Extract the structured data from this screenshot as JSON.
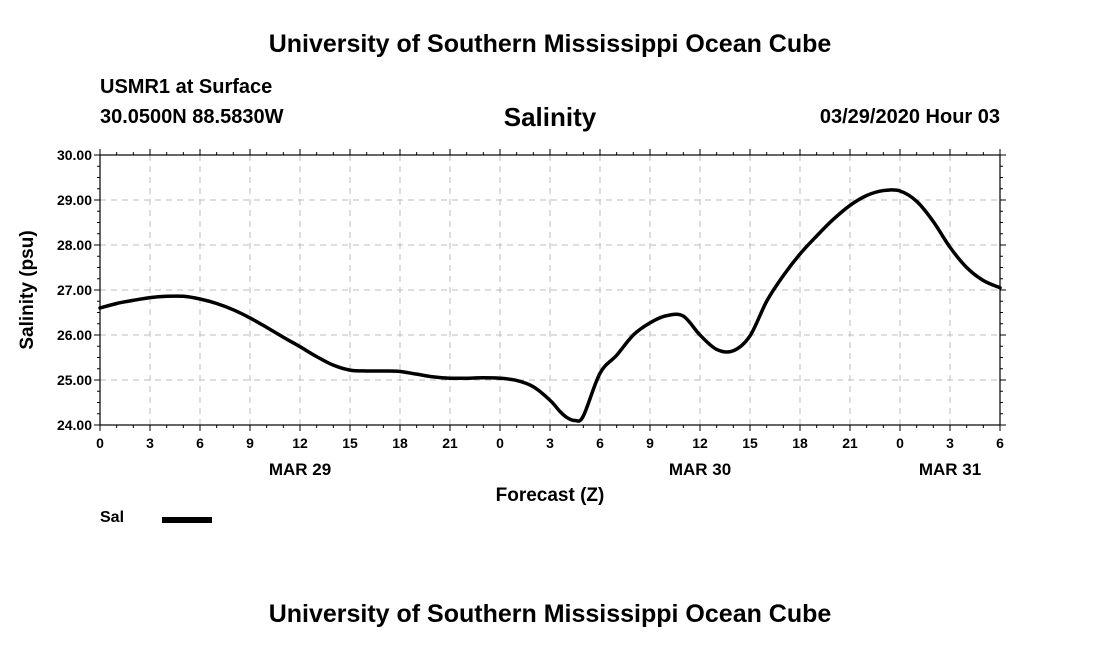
{
  "header": {
    "title": "University of Southern Mississippi Ocean Cube",
    "station": "USMR1 at Surface",
    "coordinates": "30.0500N 88.5830W",
    "datetime": "03/29/2020 Hour 03"
  },
  "footer": {
    "title": "University of Southern Mississippi Ocean Cube"
  },
  "chart_data": {
    "type": "line",
    "title": "Salinity",
    "xlabel": "Forecast (Z)",
    "ylabel": "Salinity (psu)",
    "ylim": [
      24.0,
      30.0
    ],
    "yticks": [
      "24.00",
      "25.00",
      "26.00",
      "27.00",
      "28.00",
      "29.00",
      "30.00"
    ],
    "xlim": [
      0,
      54
    ],
    "xtick_hours": [
      0,
      3,
      6,
      9,
      12,
      15,
      18,
      21,
      24,
      27,
      30,
      33,
      36,
      39,
      42,
      45,
      48,
      51,
      54
    ],
    "xtick_labels": [
      "0",
      "3",
      "6",
      "9",
      "12",
      "15",
      "18",
      "21",
      "0",
      "3",
      "6",
      "9",
      "12",
      "15",
      "18",
      "21",
      "0",
      "3",
      "6"
    ],
    "date_labels": [
      {
        "label": "MAR 29",
        "hour": 12
      },
      {
        "label": "MAR 30",
        "hour": 36
      },
      {
        "label": "MAR 31",
        "hour": 51
      }
    ],
    "grid": true,
    "legend": "bottom-left",
    "line_color": "#000000",
    "series": [
      {
        "name": "Sal",
        "x": [
          0,
          1,
          2,
          3,
          4,
          5,
          6,
          7,
          8,
          9,
          10,
          11,
          12,
          13,
          14,
          15,
          16,
          17,
          18,
          19,
          20,
          21,
          22,
          23,
          24,
          25,
          26,
          27,
          27.6,
          28,
          28.5,
          29,
          30,
          31,
          32,
          33,
          34,
          35,
          36,
          37,
          38,
          39,
          40,
          41,
          42,
          43,
          44,
          45,
          46,
          47,
          48,
          49,
          50,
          51,
          52,
          53,
          54
        ],
        "y": [
          26.6,
          26.7,
          26.77,
          26.83,
          26.86,
          26.86,
          26.8,
          26.7,
          26.56,
          26.38,
          26.17,
          25.95,
          25.74,
          25.52,
          25.33,
          25.22,
          25.2,
          25.2,
          25.19,
          25.13,
          25.07,
          25.04,
          25.04,
          25.05,
          25.04,
          24.99,
          24.85,
          24.55,
          24.3,
          24.17,
          24.1,
          24.2,
          25.15,
          25.55,
          26.0,
          26.27,
          26.43,
          26.42,
          26.0,
          25.68,
          25.65,
          25.98,
          26.75,
          27.32,
          27.8,
          28.2,
          28.57,
          28.88,
          29.1,
          29.21,
          29.2,
          28.97,
          28.52,
          27.95,
          27.5,
          27.21,
          27.05
        ]
      }
    ]
  }
}
